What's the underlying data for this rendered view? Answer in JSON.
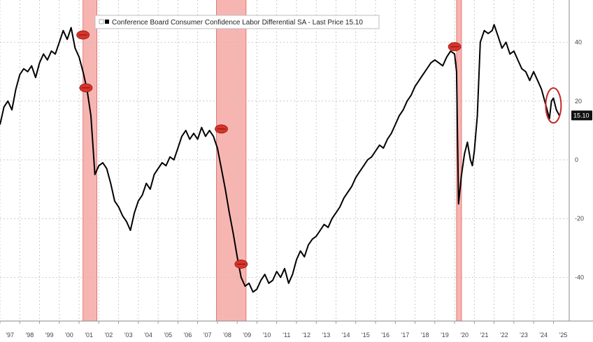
{
  "chart_data": {
    "type": "line",
    "title": "",
    "xlabel": "",
    "ylabel": "",
    "legend": {
      "label": "Conference Board Consumer Confidence Labor Differential SA - Last Price 15.10",
      "placement": "top-left"
    },
    "last_value_label": "15.10",
    "x_tick_labels": [
      "'97",
      "'98",
      "'99",
      "'00",
      "'01",
      "'02",
      "'03",
      "'04",
      "'05",
      "'06",
      "'07",
      "'08",
      "'09",
      "'10",
      "'11",
      "'12",
      "'13",
      "'14",
      "'15",
      "'16",
      "'17",
      "'18",
      "'19",
      "'20",
      "'21",
      "'22",
      "'23",
      "'24",
      "'25"
    ],
    "y_tick_labels": [
      "40",
      "20",
      "0",
      "-20",
      "-40"
    ],
    "y_ticks": [
      40,
      20,
      0,
      -20,
      -40
    ],
    "xlim": [
      1997.0,
      2025.8
    ],
    "ylim": [
      -54,
      54
    ],
    "grid": true,
    "recessions": [
      {
        "start": 2001.2,
        "end": 2001.9
      },
      {
        "start": 2007.95,
        "end": 2009.45
      },
      {
        "start": 2020.1,
        "end": 2020.35
      }
    ],
    "markers": [
      {
        "x": 2001.2,
        "y": 42.5
      },
      {
        "x": 2001.35,
        "y": 24.5
      },
      {
        "x": 2008.2,
        "y": 10.5
      },
      {
        "x": 2009.2,
        "y": -35.5
      },
      {
        "x": 2020.0,
        "y": 38.5
      }
    ],
    "highlight": {
      "x": 2025.0,
      "y": 18.5
    },
    "colors": {
      "line": "#000000",
      "recession": "#f7b5b1",
      "recession_edge": "#e06060",
      "marker": "#d9342b",
      "highlight": "#c62828",
      "last_tag": "#111111"
    },
    "series": [
      {
        "name": "Conference Board Consumer Confidence Labor Differential SA",
        "points": [
          [
            1997.0,
            12
          ],
          [
            1997.2,
            18
          ],
          [
            1997.4,
            20
          ],
          [
            1997.6,
            17
          ],
          [
            1997.8,
            24
          ],
          [
            1998.0,
            29
          ],
          [
            1998.2,
            31
          ],
          [
            1998.4,
            30
          ],
          [
            1998.6,
            32
          ],
          [
            1998.8,
            28
          ],
          [
            1999.0,
            33
          ],
          [
            1999.2,
            36
          ],
          [
            1999.4,
            34
          ],
          [
            1999.6,
            37
          ],
          [
            1999.8,
            36
          ],
          [
            2000.0,
            40
          ],
          [
            2000.2,
            44
          ],
          [
            2000.4,
            41
          ],
          [
            2000.6,
            45
          ],
          [
            2000.8,
            38
          ],
          [
            2001.0,
            35
          ],
          [
            2001.2,
            30
          ],
          [
            2001.4,
            24
          ],
          [
            2001.6,
            15
          ],
          [
            2001.8,
            -5
          ],
          [
            2002.0,
            -2
          ],
          [
            2002.2,
            -1
          ],
          [
            2002.4,
            -3
          ],
          [
            2002.6,
            -8
          ],
          [
            2002.8,
            -14
          ],
          [
            2003.0,
            -16
          ],
          [
            2003.2,
            -19
          ],
          [
            2003.4,
            -21
          ],
          [
            2003.6,
            -24
          ],
          [
            2003.8,
            -18
          ],
          [
            2004.0,
            -14
          ],
          [
            2004.2,
            -12
          ],
          [
            2004.4,
            -8
          ],
          [
            2004.6,
            -10
          ],
          [
            2004.8,
            -5
          ],
          [
            2005.0,
            -3
          ],
          [
            2005.2,
            -1
          ],
          [
            2005.4,
            -2
          ],
          [
            2005.6,
            1
          ],
          [
            2005.8,
            0
          ],
          [
            2006.0,
            4
          ],
          [
            2006.2,
            8
          ],
          [
            2006.4,
            10
          ],
          [
            2006.6,
            7
          ],
          [
            2006.8,
            9
          ],
          [
            2007.0,
            7
          ],
          [
            2007.2,
            11
          ],
          [
            2007.4,
            8
          ],
          [
            2007.6,
            10
          ],
          [
            2007.8,
            8
          ],
          [
            2008.0,
            4
          ],
          [
            2008.2,
            -3
          ],
          [
            2008.4,
            -10
          ],
          [
            2008.6,
            -18
          ],
          [
            2008.8,
            -25
          ],
          [
            2009.0,
            -33
          ],
          [
            2009.2,
            -40
          ],
          [
            2009.4,
            -43
          ],
          [
            2009.6,
            -42
          ],
          [
            2009.8,
            -45
          ],
          [
            2010.0,
            -44
          ],
          [
            2010.2,
            -41
          ],
          [
            2010.4,
            -39
          ],
          [
            2010.6,
            -42
          ],
          [
            2010.8,
            -41
          ],
          [
            2011.0,
            -38
          ],
          [
            2011.2,
            -40
          ],
          [
            2011.4,
            -37
          ],
          [
            2011.6,
            -42
          ],
          [
            2011.8,
            -39
          ],
          [
            2012.0,
            -34
          ],
          [
            2012.2,
            -31
          ],
          [
            2012.4,
            -33
          ],
          [
            2012.6,
            -29
          ],
          [
            2012.8,
            -27
          ],
          [
            2013.0,
            -26
          ],
          [
            2013.2,
            -24
          ],
          [
            2013.4,
            -22
          ],
          [
            2013.6,
            -23
          ],
          [
            2013.8,
            -20
          ],
          [
            2014.0,
            -18
          ],
          [
            2014.2,
            -16
          ],
          [
            2014.4,
            -13
          ],
          [
            2014.6,
            -11
          ],
          [
            2014.8,
            -9
          ],
          [
            2015.0,
            -6
          ],
          [
            2015.2,
            -4
          ],
          [
            2015.4,
            -2
          ],
          [
            2015.6,
            0
          ],
          [
            2015.8,
            1
          ],
          [
            2016.0,
            3
          ],
          [
            2016.2,
            5
          ],
          [
            2016.4,
            4
          ],
          [
            2016.6,
            7
          ],
          [
            2016.8,
            9
          ],
          [
            2017.0,
            12
          ],
          [
            2017.2,
            15
          ],
          [
            2017.4,
            17
          ],
          [
            2017.6,
            20
          ],
          [
            2017.8,
            22
          ],
          [
            2018.0,
            25
          ],
          [
            2018.2,
            27
          ],
          [
            2018.4,
            29
          ],
          [
            2018.6,
            31
          ],
          [
            2018.8,
            33
          ],
          [
            2019.0,
            34
          ],
          [
            2019.2,
            33
          ],
          [
            2019.4,
            32
          ],
          [
            2019.6,
            35
          ],
          [
            2019.8,
            37
          ],
          [
            2020.0,
            36
          ],
          [
            2020.1,
            30
          ],
          [
            2020.2,
            -15
          ],
          [
            2020.35,
            -5
          ],
          [
            2020.5,
            2
          ],
          [
            2020.65,
            6
          ],
          [
            2020.8,
            0
          ],
          [
            2020.9,
            -2
          ],
          [
            2021.0,
            3
          ],
          [
            2021.15,
            15
          ],
          [
            2021.3,
            40
          ],
          [
            2021.5,
            44
          ],
          [
            2021.7,
            43
          ],
          [
            2021.9,
            44
          ],
          [
            2022.0,
            46
          ],
          [
            2022.2,
            42
          ],
          [
            2022.4,
            38
          ],
          [
            2022.6,
            40
          ],
          [
            2022.8,
            36
          ],
          [
            2023.0,
            37
          ],
          [
            2023.2,
            34
          ],
          [
            2023.4,
            31
          ],
          [
            2023.6,
            30
          ],
          [
            2023.8,
            27
          ],
          [
            2024.0,
            30
          ],
          [
            2024.2,
            27
          ],
          [
            2024.4,
            24
          ],
          [
            2024.6,
            19
          ],
          [
            2024.8,
            14
          ],
          [
            2024.9,
            20
          ],
          [
            2025.0,
            21
          ],
          [
            2025.15,
            17
          ],
          [
            2025.3,
            15.1
          ]
        ]
      }
    ]
  }
}
